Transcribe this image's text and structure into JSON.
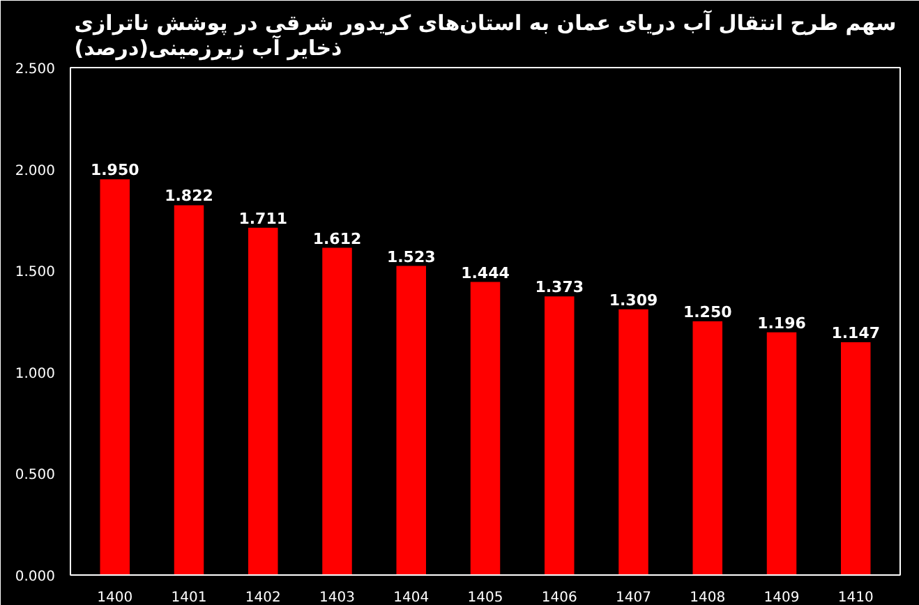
{
  "chart_data": {
    "type": "bar",
    "title": "سهم طرح انتقال آب دریای عمان به استان‌های کریدور شرقی در پوشش ناترازی\nذخایر آب زیرزمینی(درصد)",
    "categories": [
      "1400",
      "1401",
      "1402",
      "1403",
      "1404",
      "1405",
      "1406",
      "1407",
      "1408",
      "1409",
      "1410"
    ],
    "values": [
      1.95,
      1.822,
      1.711,
      1.612,
      1.523,
      1.444,
      1.373,
      1.309,
      1.25,
      1.196,
      1.147
    ],
    "value_labels": [
      "1.950",
      "1.822",
      "1.711",
      "1.612",
      "1.523",
      "1.444",
      "1.373",
      "1.309",
      "1.250",
      "1.196",
      "1.147"
    ],
    "color": "#ff0000",
    "ylim": [
      0,
      2.5
    ],
    "yticks": [
      {
        "value": 0,
        "label": "0.000"
      },
      {
        "value": 0.5,
        "label": "0.500"
      },
      {
        "value": 1,
        "label": "1.000"
      },
      {
        "value": 1.5,
        "label": "1.500"
      },
      {
        "value": 2,
        "label": "2.000"
      },
      {
        "value": 2.5,
        "label": "2.500"
      }
    ],
    "grid": false
  }
}
